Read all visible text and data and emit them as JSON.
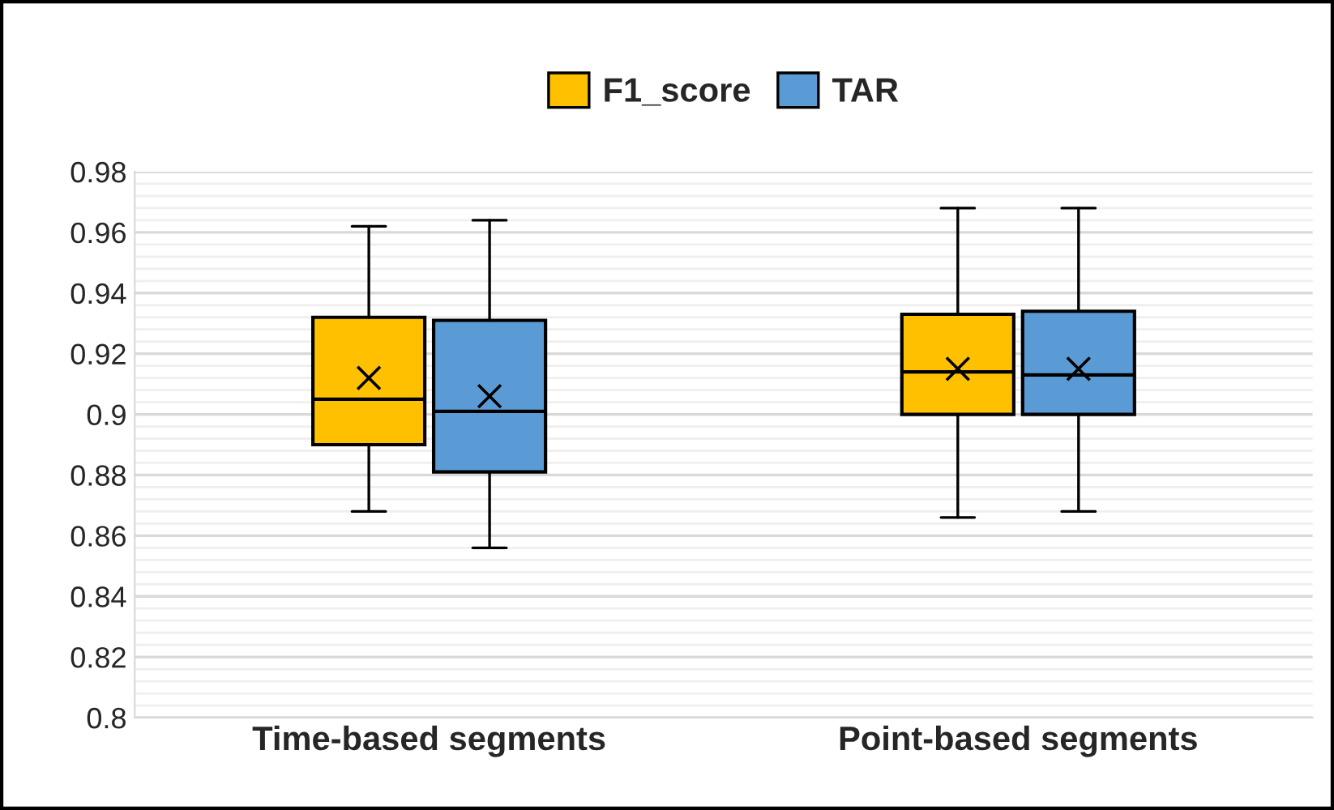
{
  "chart_data": {
    "type": "box",
    "categories": [
      "Time-based segments",
      "Point-based segments"
    ],
    "series": [
      {
        "name": "F1_score",
        "color": "#ffc000",
        "boxes": [
          {
            "low": 0.868,
            "q1": 0.89,
            "median": 0.905,
            "q3": 0.932,
            "high": 0.962,
            "mean": 0.912
          },
          {
            "low": 0.866,
            "q1": 0.9,
            "median": 0.914,
            "q3": 0.933,
            "high": 0.968,
            "mean": 0.915
          }
        ]
      },
      {
        "name": "TAR",
        "color": "#5b9bd5",
        "boxes": [
          {
            "low": 0.856,
            "q1": 0.881,
            "median": 0.901,
            "q3": 0.931,
            "high": 0.964,
            "mean": 0.906
          },
          {
            "low": 0.868,
            "q1": 0.9,
            "median": 0.913,
            "q3": 0.934,
            "high": 0.968,
            "mean": 0.915
          }
        ]
      }
    ],
    "ylim": [
      0.8,
      0.98
    ],
    "yticks": [
      {
        "value": 0.8,
        "label": "0.8"
      },
      0.82,
      0.84,
      0.86,
      0.88,
      {
        "value": 0.9,
        "label": "0.9"
      },
      0.92,
      0.94,
      0.96,
      0.98
    ],
    "grid": "y",
    "legend": "top"
  }
}
